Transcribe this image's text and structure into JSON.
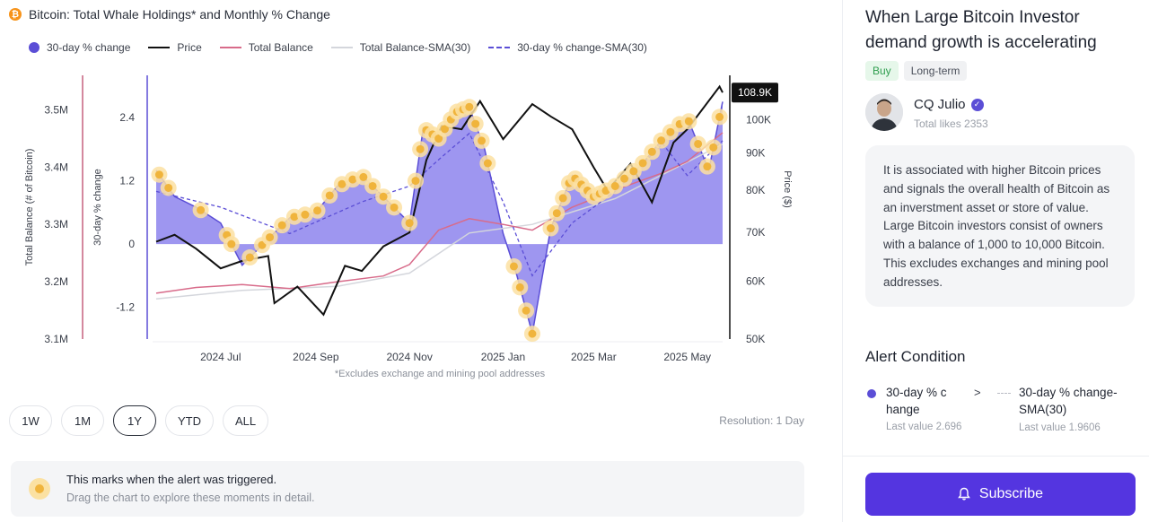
{
  "chart_panel": {
    "title": "Bitcoin: Total Whale Holdings* and Monthly % Change",
    "legend": [
      {
        "label": "30-day % change",
        "kind": "dot",
        "color": "#5b4ed6"
      },
      {
        "label": "Price",
        "kind": "solid",
        "color": "#111111"
      },
      {
        "label": "Total Balance",
        "kind": "solid",
        "color": "#d86b8a"
      },
      {
        "label": "Total Balance-SMA(30)",
        "kind": "solid",
        "color": "#d4d6dc"
      },
      {
        "label": "30-day % change-SMA(30)",
        "kind": "dashed",
        "color": "#5b4ed6"
      }
    ],
    "footnote": "*Excludes exchange and mining pool addresses",
    "ranges": [
      "1W",
      "1M",
      "1Y",
      "YTD",
      "ALL"
    ],
    "active_range": "1Y",
    "resolution": "Resolution: 1 Day",
    "alert_note": {
      "title": "This marks when the alert was triggered.",
      "subtitle": "Drag the chart to explore these moments in detail."
    }
  },
  "chart_data": {
    "type": "line",
    "title": "Bitcoin: Total Whale Holdings* and Monthly % Change",
    "x_tick_labels": [
      "2024 Jul",
      "2024 Sep",
      "2024 Nov",
      "2025 Jan",
      "2025 Mar",
      "2025 May"
    ],
    "x_range": [
      "2024-05-20",
      "2025-05-24"
    ],
    "y_left": {
      "label": "Total Balance (# of Bitcoin)",
      "ticks": [
        "3.1M",
        "3.2M",
        "3.3M",
        "3.4M",
        "3.5M"
      ],
      "range": [
        3100000,
        3560000
      ]
    },
    "y_mid": {
      "label": "30-day % change",
      "ticks": [
        "-1.2",
        "0",
        "1.2",
        "2.4"
      ],
      "range": [
        -1.8,
        3.2
      ]
    },
    "y_right": {
      "label": "Price ($)",
      "ticks": [
        "50K",
        "60K",
        "70K",
        "80K",
        "90K",
        "100K"
      ],
      "scale": "log",
      "range": [
        50000,
        115000
      ]
    },
    "current_price_label": "108.9K",
    "series": [
      {
        "name": "30-day % change",
        "axis": "mid",
        "x": [
          "2024-05-20",
          "2024-06-01",
          "2024-06-15",
          "2024-07-01",
          "2024-07-15",
          "2024-08-01",
          "2024-08-15",
          "2024-09-01",
          "2024-09-15",
          "2024-10-01",
          "2024-10-15",
          "2024-11-01",
          "2024-11-10",
          "2024-11-20",
          "2024-12-01",
          "2024-12-10",
          "2024-12-20",
          "2025-01-01",
          "2025-01-10",
          "2025-01-20",
          "2025-02-01",
          "2025-02-15",
          "2025-03-01",
          "2025-03-15",
          "2025-04-01",
          "2025-04-15",
          "2025-05-01",
          "2025-05-15",
          "2025-05-24"
        ],
        "values": [
          1.4,
          0.9,
          0.7,
          0.4,
          -0.4,
          0.1,
          0.5,
          0.6,
          1.1,
          1.3,
          0.9,
          0.4,
          2.2,
          2.0,
          2.5,
          2.6,
          1.8,
          0.2,
          -0.6,
          -1.7,
          0.3,
          1.3,
          0.9,
          1.1,
          1.5,
          2.0,
          2.4,
          1.4,
          2.7
        ]
      },
      {
        "name": "30-day % change-SMA(30)",
        "axis": "mid",
        "x": [
          "2024-05-20",
          "2024-07-01",
          "2024-08-15",
          "2024-10-01",
          "2024-11-01",
          "2024-11-20",
          "2024-12-10",
          "2025-01-01",
          "2025-01-20",
          "2025-02-15",
          "2025-03-15",
          "2025-04-15",
          "2025-05-01",
          "2025-05-24"
        ],
        "values": [
          1.0,
          0.7,
          0.2,
          0.8,
          1.1,
          1.6,
          2.1,
          0.8,
          -0.6,
          0.4,
          1.0,
          1.9,
          1.3,
          1.96
        ]
      },
      {
        "name": "Price",
        "axis": "right",
        "x": [
          "2024-05-20",
          "2024-06-01",
          "2024-06-15",
          "2024-07-01",
          "2024-07-15",
          "2024-08-01",
          "2024-08-05",
          "2024-08-20",
          "2024-09-06",
          "2024-09-20",
          "2024-10-01",
          "2024-10-15",
          "2024-11-01",
          "2024-11-12",
          "2024-11-22",
          "2024-12-05",
          "2024-12-17",
          "2025-01-01",
          "2025-01-20",
          "2025-02-01",
          "2025-02-15",
          "2025-03-01",
          "2025-03-10",
          "2025-03-25",
          "2025-04-08",
          "2025-04-22",
          "2025-05-01",
          "2025-05-22",
          "2025-05-24"
        ],
        "values": [
          68000,
          69500,
          66500,
          62500,
          64000,
          65000,
          56000,
          59000,
          54000,
          63000,
          62000,
          67000,
          70000,
          88000,
          98000,
          97000,
          106000,
          94000,
          105000,
          101000,
          97000,
          86000,
          80000,
          87000,
          77000,
          93000,
          97000,
          111000,
          108900
        ]
      },
      {
        "name": "Total Balance",
        "axis": "left",
        "x": [
          "2024-05-20",
          "2024-06-15",
          "2024-07-15",
          "2024-08-15",
          "2024-09-15",
          "2024-10-15",
          "2024-11-01",
          "2024-11-20",
          "2024-12-10",
          "2025-01-01",
          "2025-01-20",
          "2025-02-15",
          "2025-03-15",
          "2025-04-15",
          "2025-05-01",
          "2025-05-24"
        ],
        "values": [
          3180000,
          3190000,
          3195000,
          3188000,
          3200000,
          3210000,
          3230000,
          3290000,
          3310000,
          3300000,
          3290000,
          3330000,
          3360000,
          3390000,
          3410000,
          3460000
        ]
      },
      {
        "name": "Total Balance-SMA(30)",
        "axis": "left",
        "x": [
          "2024-05-20",
          "2024-07-15",
          "2024-09-15",
          "2024-11-01",
          "2024-12-10",
          "2025-01-20",
          "2025-03-15",
          "2025-05-24"
        ],
        "values": [
          3170000,
          3185000,
          3192000,
          3215000,
          3285000,
          3300000,
          3345000,
          3440000
        ]
      }
    ],
    "alert_triggers_x": [
      "2024-05-22",
      "2024-05-28",
      "2024-06-18",
      "2024-07-05",
      "2024-07-08",
      "2024-07-20",
      "2024-07-28",
      "2024-08-02",
      "2024-08-10",
      "2024-08-18",
      "2024-08-25",
      "2024-09-02",
      "2024-09-10",
      "2024-09-18",
      "2024-09-25",
      "2024-10-02",
      "2024-10-08",
      "2024-10-15",
      "2024-10-22",
      "2024-11-01",
      "2024-11-05",
      "2024-11-08",
      "2024-11-12",
      "2024-11-16",
      "2024-11-20",
      "2024-11-24",
      "2024-11-28",
      "2024-12-02",
      "2024-12-06",
      "2024-12-10",
      "2024-12-14",
      "2024-12-18",
      "2024-12-22",
      "2025-01-08",
      "2025-01-12",
      "2025-01-16",
      "2025-01-20",
      "2025-02-01",
      "2025-02-05",
      "2025-02-09",
      "2025-02-13",
      "2025-02-17",
      "2025-02-21",
      "2025-02-25",
      "2025-03-01",
      "2025-03-05",
      "2025-03-09",
      "2025-03-15",
      "2025-03-21",
      "2025-03-27",
      "2025-04-02",
      "2025-04-08",
      "2025-04-14",
      "2025-04-20",
      "2025-04-26",
      "2025-05-02",
      "2025-05-08",
      "2025-05-14",
      "2025-05-18",
      "2025-05-22"
    ],
    "grid": false,
    "legend_position": "top-left"
  },
  "right_panel": {
    "alert_title": "When Large Bitcoin Investor demand growth is accelerating",
    "tags": [
      "Buy",
      "Long-term"
    ],
    "author": {
      "name": "CQ Julio",
      "likes": "Total likes 2353"
    },
    "description": "It is associated with higher Bitcoin prices and signals the overall health of Bitcoin as an inverstment asset or store of value. Large Bitcoin investors consist of owners with a balance of 1,000 to 10,000 Bitcoin. This excludes exchanges and mining pool addresses.",
    "condition": {
      "section_title": "Alert Condition",
      "left_metric": "30-day % c hange",
      "operator": ">",
      "right_metric": "30-day % change-SMA(30)",
      "left_last_value": "Last value 2.696",
      "right_last_value": "Last value 1.9606"
    },
    "subscribe_label": "Subscribe"
  }
}
